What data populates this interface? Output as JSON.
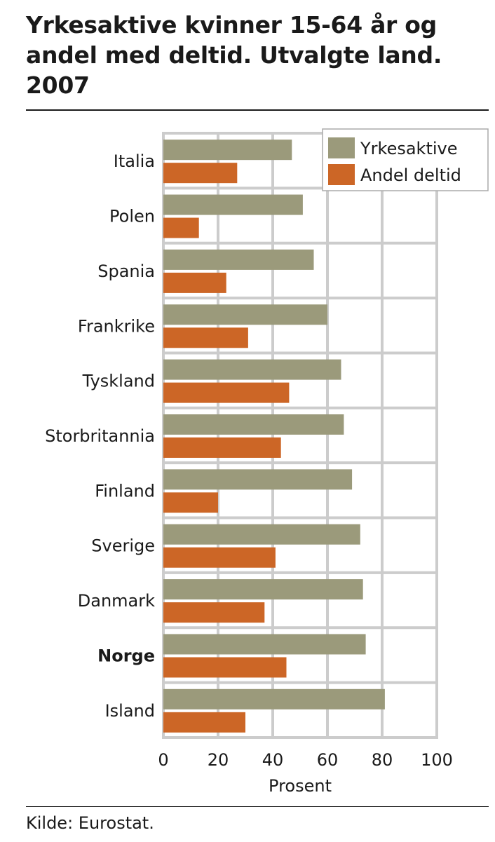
{
  "chart_data": {
    "type": "bar",
    "orientation": "horizontal",
    "title": "Yrkesaktive kvinner 15-64 år og andel med deltid. Utvalgte land. 2007",
    "categories": [
      "Italia",
      "Polen",
      "Spania",
      "Frankrike",
      "Tyskland",
      "Storbritannia",
      "Finland",
      "Sverige",
      "Danmark",
      "Norge",
      "Island"
    ],
    "bold_categories": [
      "Norge"
    ],
    "series": [
      {
        "name": "Yrkesaktive",
        "color": "#9b9a7b",
        "values": [
          47,
          51,
          55,
          60,
          65,
          66,
          69,
          72,
          73,
          74,
          81
        ]
      },
      {
        "name": "Andel deltid",
        "color": "#cc6626",
        "values": [
          27,
          13,
          23,
          31,
          46,
          43,
          20,
          41,
          37,
          45,
          30
        ]
      }
    ],
    "xlabel": "Prosent",
    "ylabel": "",
    "xlim": [
      0,
      100
    ],
    "xticks": [
      "0",
      "20",
      "40",
      "60",
      "80",
      "100"
    ],
    "grid": true,
    "legend_position": "top-right",
    "plot_background": "#ffffff",
    "grid_color": "#cccccc"
  },
  "source": "Kilde: Eurostat."
}
